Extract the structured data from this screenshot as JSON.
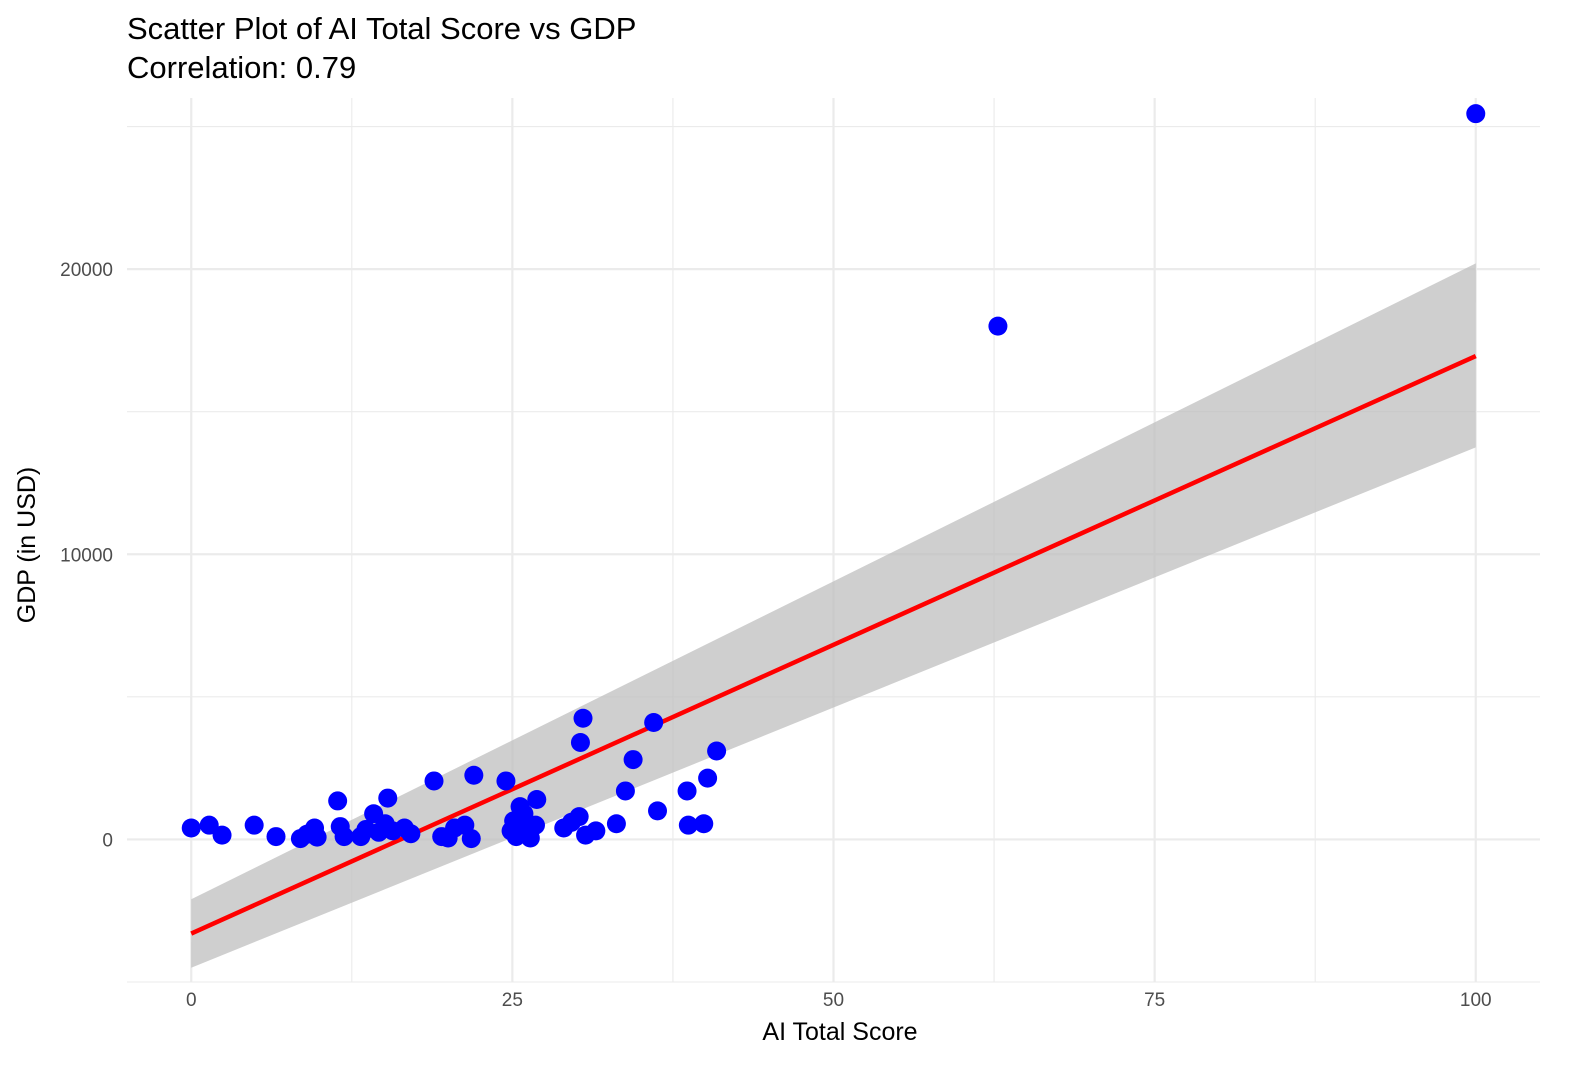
{
  "chart_data": {
    "type": "scatter",
    "title": "Scatter Plot of AI Total Score vs GDP",
    "subtitle": "Correlation:  0.79",
    "xlabel": "AI Total Score",
    "ylabel": "GDP (in USD)",
    "xlim": [
      -5,
      105
    ],
    "ylim": [
      -5000,
      26000
    ],
    "x_ticks": [
      0,
      25,
      50,
      75,
      100
    ],
    "x_tick_labels": [
      "0",
      "25",
      "50",
      "75",
      "100"
    ],
    "y_ticks": [
      0,
      10000,
      20000
    ],
    "y_tick_labels": [
      "0",
      "10000",
      "20000"
    ],
    "grid": true,
    "legend": "none",
    "colors": {
      "points": "#0000ff",
      "fit_line": "#ff0000",
      "ribbon": "#bfbfbf",
      "grid": "#ebebeb"
    },
    "points": [
      {
        "x": 0,
        "y": 400
      },
      {
        "x": 1.4,
        "y": 500
      },
      {
        "x": 2.4,
        "y": 150
      },
      {
        "x": 4.9,
        "y": 500
      },
      {
        "x": 6.6,
        "y": 100
      },
      {
        "x": 8.5,
        "y": 30
      },
      {
        "x": 9.0,
        "y": 180
      },
      {
        "x": 9.6,
        "y": 400
      },
      {
        "x": 9.8,
        "y": 80
      },
      {
        "x": 11.4,
        "y": 1350
      },
      {
        "x": 11.6,
        "y": 450
      },
      {
        "x": 11.9,
        "y": 100
      },
      {
        "x": 13.2,
        "y": 100
      },
      {
        "x": 13.6,
        "y": 350
      },
      {
        "x": 14.2,
        "y": 900
      },
      {
        "x": 14.6,
        "y": 250
      },
      {
        "x": 15.1,
        "y": 550
      },
      {
        "x": 15.3,
        "y": 1450
      },
      {
        "x": 15.7,
        "y": 300
      },
      {
        "x": 16.6,
        "y": 400
      },
      {
        "x": 17.1,
        "y": 200
      },
      {
        "x": 18.9,
        "y": 2050
      },
      {
        "x": 19.5,
        "y": 100
      },
      {
        "x": 20.0,
        "y": 50
      },
      {
        "x": 20.5,
        "y": 400
      },
      {
        "x": 21.3,
        "y": 500
      },
      {
        "x": 21.8,
        "y": 30
      },
      {
        "x": 22.0,
        "y": 2250
      },
      {
        "x": 24.5,
        "y": 2050
      },
      {
        "x": 24.9,
        "y": 300
      },
      {
        "x": 25.1,
        "y": 650
      },
      {
        "x": 25.3,
        "y": 100
      },
      {
        "x": 25.6,
        "y": 1150
      },
      {
        "x": 25.9,
        "y": 900
      },
      {
        "x": 26.1,
        "y": 300
      },
      {
        "x": 26.4,
        "y": 50
      },
      {
        "x": 26.8,
        "y": 500
      },
      {
        "x": 26.9,
        "y": 1400
      },
      {
        "x": 29.0,
        "y": 400
      },
      {
        "x": 29.6,
        "y": 600
      },
      {
        "x": 30.2,
        "y": 800
      },
      {
        "x": 30.3,
        "y": 3400
      },
      {
        "x": 30.5,
        "y": 4250
      },
      {
        "x": 30.7,
        "y": 150
      },
      {
        "x": 31.5,
        "y": 300
      },
      {
        "x": 33.1,
        "y": 550
      },
      {
        "x": 33.8,
        "y": 1700
      },
      {
        "x": 34.4,
        "y": 2800
      },
      {
        "x": 36.0,
        "y": 4100
      },
      {
        "x": 36.3,
        "y": 1000
      },
      {
        "x": 38.6,
        "y": 1700
      },
      {
        "x": 38.7,
        "y": 500
      },
      {
        "x": 39.9,
        "y": 550
      },
      {
        "x": 40.2,
        "y": 2150
      },
      {
        "x": 40.9,
        "y": 3100
      },
      {
        "x": 62.8,
        "y": 18000
      },
      {
        "x": 100,
        "y": 25450
      }
    ],
    "fit_line": {
      "x": [
        0,
        100
      ],
      "y": [
        -3300,
        16950
      ]
    },
    "ribbon": {
      "x": [
        0,
        100
      ],
      "upper": [
        -2100,
        20200
      ],
      "lower": [
        -4500,
        13750
      ]
    }
  }
}
